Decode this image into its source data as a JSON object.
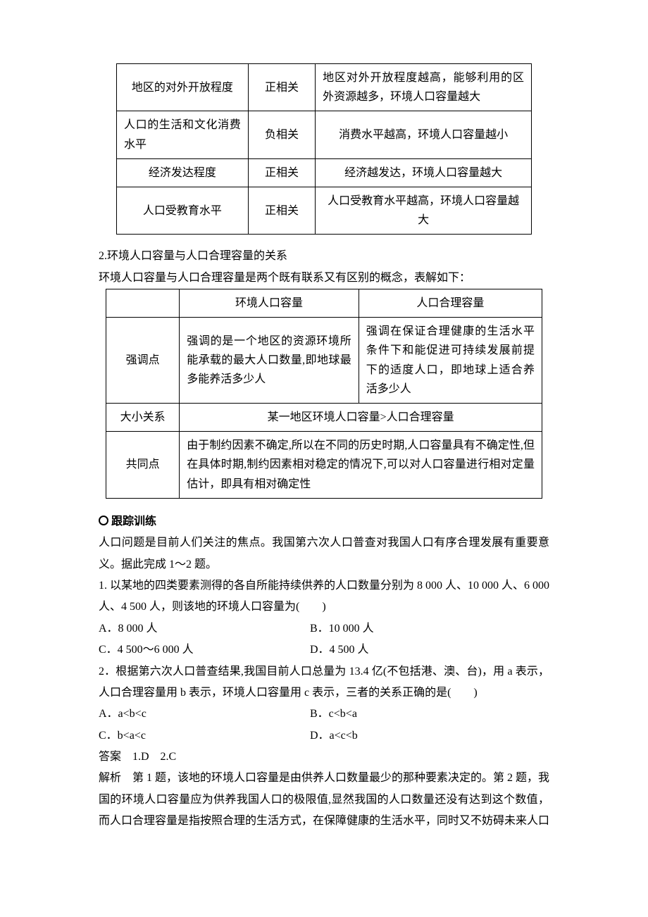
{
  "table1": {
    "rows": [
      {
        "factor": "地区的对外开放程度",
        "rel": "正相关",
        "note": "地区对外开放程度越高，能够利用的区外资源越多，环境人口容量越大",
        "noteAlign": "j"
      },
      {
        "factor": "人口的生活和文化消费水平",
        "rel": "负相关",
        "note": "消费水平越高，环境人口容量越小",
        "noteAlign": "c"
      },
      {
        "factor": "经济发达程度",
        "rel": "正相关",
        "note": "经济越发达，环境人口容量越大",
        "noteAlign": "c"
      },
      {
        "factor": "人口受教育水平",
        "rel": "正相关",
        "note": "人口受教育水平越高，环境人口容量越大",
        "noteAlign": "c"
      }
    ]
  },
  "section2": {
    "heading": "2.环境人口容量与人口合理容量的关系",
    "lead": "环境人口容量与人口合理容量是两个既有联系又有区别的概念，表解如下："
  },
  "table2": {
    "headers": {
      "blank": "",
      "c1": "环境人口容量",
      "c2": "人口合理容量"
    },
    "row_emph": {
      "label": "强调点",
      "c1": "强调的是一个地区的资源环境所能承载的最大人口数量,即地球最多能养活多少人",
      "c2": "强调在保证合理健康的生活水平条件下和能促进可持续发展前提下的适度人口，即地球上适合养活多少人"
    },
    "row_size": {
      "label": "大小关系",
      "merged": "某一地区环境人口容量>人口合理容量"
    },
    "row_common": {
      "label": "共同点",
      "merged": "由于制约因素不确定,所以在不同的历史时期,人口容量具有不确定性,但在具体时期,制约因素相对稳定的情况下,可以对人口容量进行相对定量估计，即具有相对确定性"
    }
  },
  "practice": {
    "title": "跟踪训练",
    "intro": "人口问题是目前人们关注的焦点。我国第六次人口普查对我国人口有序合理发展有重要意义。据此完成 1～2 题。",
    "q1": {
      "stem": "1. 以某地的四类要素测得的各自所能持续供养的人口数量分别为 8 000 人、10 000 人、6 000 人、4 500 人，则该地的环境人口容量为(　　)",
      "A": "A．8 000 人",
      "B": "B．10 000 人",
      "C": "C．4 500～6 000 人",
      "D": "D．4 500 人"
    },
    "q2": {
      "stem": "2．根据第六次人口普查结果,我国目前人口总量为 13.4 亿(不包括港、澳、台)，用 a 表示，人口合理容量用 b 表示，环境人口容量用 c 表示，三者的关系正确的是(　　)",
      "A": "A．a<b<c",
      "B": "B．c<b<a",
      "C": "C．b<a<c",
      "D": "D．a<c<b"
    },
    "answer": "答案　1.D　2.C",
    "explain": "解析　第 1 题，该地的环境人口容量是由供养人口数量最少的那种要素决定的。第 2 题，我国的环境人口容量应为供养我国人口的极限值,显然我国的人口数量还没有达到这个数值，而人口合理容量是指按照合理的生活方式，在保障健康的生活水平，同时又不妨碍未来人口"
  }
}
